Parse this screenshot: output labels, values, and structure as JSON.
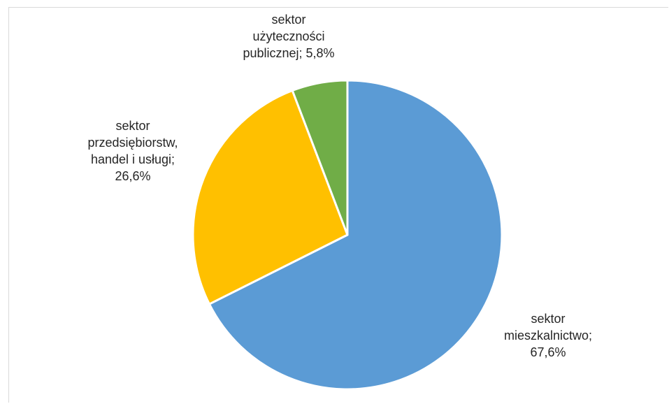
{
  "chart_data": {
    "type": "pie",
    "title": "",
    "slices": [
      {
        "name": "sektor mieszkalnictwo",
        "value": 67.6,
        "color": "#5b9bd5",
        "label_lines": [
          "sektor",
          "mieszkalnictwo;",
          "67,6%"
        ]
      },
      {
        "name": "sektor przedsiębiorstw, handel i usługi",
        "value": 26.6,
        "color": "#ffc000",
        "label_lines": [
          "sektor",
          "przedsiębiorstw,",
          "handel i usługi;",
          "26,6%"
        ]
      },
      {
        "name": "sektor użyteczności publicznej",
        "value": 5.8,
        "color": "#70ad47",
        "label_lines": [
          "sektor",
          "użyteczności",
          "publicznej; 5,8%"
        ]
      }
    ],
    "start_angle_deg": 0,
    "direction": "clockwise",
    "legend": "none",
    "data_labels": "outside"
  }
}
